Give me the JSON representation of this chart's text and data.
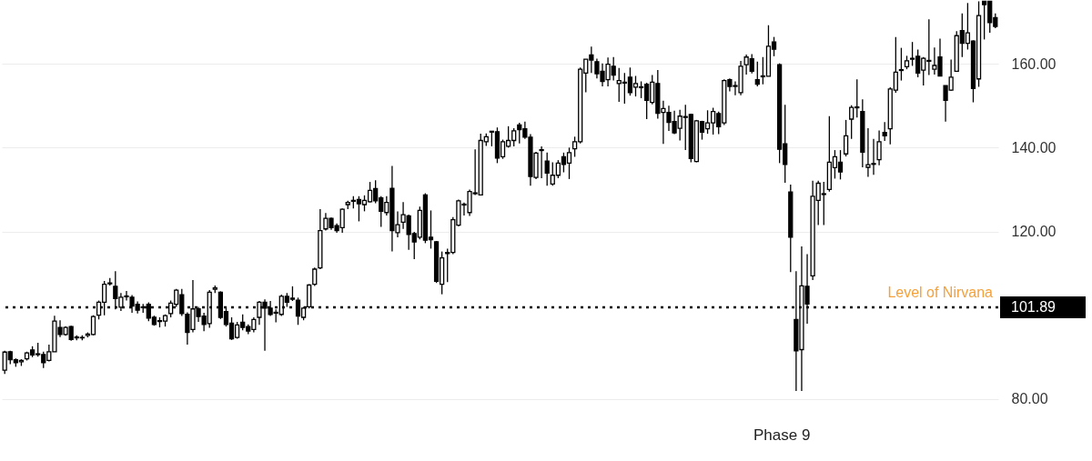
{
  "chart_data": {
    "type": "candlestick",
    "categories": [
      null,
      null,
      null,
      null,
      null,
      null,
      null,
      null,
      null,
      null,
      null,
      null,
      null,
      null,
      null,
      null,
      null,
      null,
      null,
      null,
      null,
      null,
      null,
      null,
      null,
      null,
      null,
      null,
      null,
      null,
      null,
      null,
      null,
      null,
      null,
      null,
      null,
      null,
      null,
      null,
      null,
      null,
      null,
      null,
      null,
      null,
      null,
      null,
      null,
      null,
      null,
      null,
      null,
      null,
      null,
      null,
      null,
      null,
      null,
      null,
      null,
      null,
      null,
      null,
      null,
      null,
      null,
      null,
      null,
      null,
      null,
      null,
      null,
      null,
      null,
      null,
      null,
      null,
      null,
      null,
      null,
      null,
      null,
      null,
      null,
      null,
      null,
      null,
      null,
      null,
      null,
      null,
      null,
      null,
      null,
      null,
      null,
      null,
      null,
      null,
      null,
      null,
      null,
      null,
      null,
      null,
      null,
      null,
      null,
      null,
      null,
      null,
      null,
      null,
      null,
      null,
      null,
      null,
      null,
      null,
      null,
      null,
      null,
      null,
      null,
      null,
      null,
      null,
      null,
      null,
      null,
      null,
      null,
      null,
      null,
      null,
      null,
      null,
      null,
      null,
      null,
      null,
      null,
      null,
      null,
      null,
      null,
      null,
      null,
      null,
      null,
      null,
      null,
      null,
      null,
      null,
      null,
      null,
      null,
      null,
      null,
      null,
      null,
      null,
      null,
      null,
      null,
      null,
      null,
      null,
      null,
      null,
      null,
      null,
      null,
      null,
      null,
      null,
      null,
      null
    ],
    "ohlc": [
      [
        86.9,
        91.5,
        86,
        91.2
      ],
      [
        91.3,
        91.5,
        88.3,
        89.4
      ],
      [
        89.4,
        89.7,
        87.7,
        88.7
      ],
      [
        88.9,
        89.5,
        87.9,
        89.2
      ],
      [
        89.6,
        91.3,
        89.2,
        91.0
      ],
      [
        91.7,
        92.6,
        90.0,
        90.5
      ],
      [
        90.8,
        93.4,
        90.1,
        90.6
      ],
      [
        90.6,
        91.3,
        87.4,
        88.7
      ],
      [
        89.2,
        93.0,
        89.0,
        91.3
      ],
      [
        91.3,
        99.9,
        91.3,
        98.6
      ],
      [
        97.1,
        98.8,
        94.8,
        95.4
      ],
      [
        95.4,
        97.4,
        95.1,
        97.1
      ],
      [
        97.3,
        97.5,
        93.9,
        94.2
      ],
      [
        94.6,
        95.2,
        94.0,
        94.8
      ],
      [
        94.7,
        95.2,
        94.0,
        94.6
      ],
      [
        95.2,
        95.9,
        94.7,
        95.5
      ],
      [
        95.4,
        100.0,
        95.2,
        99.7
      ],
      [
        100.0,
        103.5,
        99.0,
        103.1
      ],
      [
        103.1,
        108.2,
        100.0,
        107.4
      ],
      [
        107.5,
        108.9,
        107.1,
        107.7
      ],
      [
        106.9,
        110.5,
        101.4,
        104.0
      ],
      [
        101.9,
        105.3,
        101.0,
        104.3
      ],
      [
        104.4,
        105.8,
        103.5,
        104.6
      ],
      [
        104.3,
        104.8,
        100.6,
        102.2
      ],
      [
        102.6,
        103.3,
        100.4,
        101.2
      ],
      [
        101.8,
        102.7,
        100.6,
        102.0
      ],
      [
        102.6,
        103.1,
        98.6,
        99.3
      ],
      [
        99.5,
        99.9,
        97.5,
        97.8
      ],
      [
        98.5,
        99.5,
        97.1,
        98.7
      ],
      [
        98.6,
        100.2,
        97.3,
        99.9
      ],
      [
        100.4,
        103.5,
        99.5,
        102.9
      ],
      [
        102.6,
        106.3,
        102.0,
        106.0
      ],
      [
        104.9,
        106.3,
        99.8,
        100.4
      ],
      [
        100.2,
        100.7,
        93.0,
        95.9
      ],
      [
        96.6,
        108.4,
        95.9,
        101.5
      ],
      [
        101.5,
        102.0,
        98.4,
        99.7
      ],
      [
        99.8,
        100.6,
        96.2,
        97.8
      ],
      [
        98.0,
        106.0,
        97.0,
        105.5
      ],
      [
        106.2,
        107.1,
        105.3,
        106.5
      ],
      [
        105.5,
        105.7,
        99.1,
        99.5
      ],
      [
        100.9,
        102.0,
        97.3,
        97.8
      ],
      [
        98.1,
        99.5,
        94.1,
        94.4
      ],
      [
        94.7,
        98.4,
        94.4,
        97.7
      ],
      [
        98.3,
        100.2,
        96.4,
        97.1
      ],
      [
        97.3,
        97.8,
        95.5,
        96.2
      ],
      [
        96.6,
        99.5,
        95.9,
        99.0
      ],
      [
        99.5,
        103.4,
        97.7,
        103.1
      ],
      [
        103.1,
        103.8,
        91.5,
        101.7
      ],
      [
        101.7,
        103.4,
        99.8,
        100.2
      ],
      [
        100.5,
        101.4,
        98.3,
        100.7
      ],
      [
        100.2,
        104.9,
        99.8,
        104.5
      ],
      [
        104.5,
        105.3,
        102.0,
        103.1
      ],
      [
        103.8,
        106.9,
        103.4,
        104.1
      ],
      [
        103.6,
        104.2,
        97.7,
        99.8
      ],
      [
        99.5,
        102.0,
        98.8,
        101.7
      ],
      [
        102.0,
        107.4,
        101.6,
        107.2
      ],
      [
        107.4,
        111.4,
        107.0,
        111.0
      ],
      [
        111.3,
        125.3,
        111.0,
        120.2
      ],
      [
        120.6,
        124.4,
        120.2,
        123.1
      ],
      [
        123.1,
        123.3,
        120.4,
        120.9
      ],
      [
        121.4,
        121.9,
        119.7,
        120.2
      ],
      [
        120.9,
        125.5,
        119.7,
        125.3
      ],
      [
        126.4,
        127.3,
        125.3,
        126.9
      ],
      [
        127.2,
        128.4,
        125.5,
        127.4
      ],
      [
        127.6,
        128.4,
        122.4,
        126.6
      ],
      [
        126.4,
        128.6,
        124.8,
        127.4
      ],
      [
        127.1,
        131.8,
        126.9,
        129.8
      ],
      [
        130.2,
        132.2,
        126.7,
        127.3
      ],
      [
        128.0,
        128.4,
        121.1,
        124.8
      ],
      [
        124.5,
        128.4,
        123.8,
        126.9
      ],
      [
        130.3,
        135.6,
        115.2,
        120.2
      ],
      [
        119.7,
        124.8,
        118.6,
        121.6
      ],
      [
        122.2,
        127.0,
        120.6,
        124.0
      ],
      [
        123.7,
        124.0,
        115.6,
        119.3
      ],
      [
        119.5,
        119.9,
        113.4,
        117.5
      ],
      [
        118.6,
        125.9,
        118.1,
        125.0
      ],
      [
        128.7,
        129.1,
        117.2,
        117.9
      ],
      [
        118.6,
        125.0,
        115.9,
        118.0
      ],
      [
        117.5,
        117.7,
        107.7,
        108.1
      ],
      [
        107.4,
        115.2,
        105.0,
        113.7
      ],
      [
        114.7,
        115.9,
        107.9,
        115.0
      ],
      [
        115.0,
        123.4,
        114.6,
        122.8
      ],
      [
        121.5,
        127.6,
        121.2,
        127.3
      ],
      [
        126.3,
        126.9,
        123.8,
        126.5
      ],
      [
        124.5,
        130.0,
        123.7,
        129.5
      ],
      [
        129.0,
        139.6,
        128.7,
        129.2
      ],
      [
        128.7,
        143.3,
        128.7,
        141.7
      ],
      [
        141.4,
        143.4,
        140.4,
        142.6
      ],
      [
        143.7,
        143.9,
        140.3,
        143.9
      ],
      [
        143.8,
        144.8,
        136.3,
        137.5
      ],
      [
        137.8,
        141.9,
        137.3,
        141.4
      ],
      [
        140.3,
        145.1,
        140.0,
        141.7
      ],
      [
        141.7,
        144.6,
        140.3,
        144.0
      ],
      [
        145.4,
        145.9,
        141.0,
        144.3
      ],
      [
        144.5,
        146.2,
        142.1,
        142.5
      ],
      [
        142.5,
        143.2,
        130.9,
        133.1
      ],
      [
        132.9,
        139.0,
        132.5,
        138.7
      ],
      [
        139.3,
        140.3,
        132.7,
        139.5
      ],
      [
        136.8,
        138.8,
        130.9,
        133.9
      ],
      [
        131.3,
        136.5,
        130.9,
        133.4
      ],
      [
        133.4,
        137.0,
        132.7,
        136.3
      ],
      [
        137.8,
        138.8,
        134.1,
        136.0
      ],
      [
        136.3,
        140.0,
        132.5,
        138.8
      ],
      [
        139.7,
        142.6,
        137.8,
        141.4
      ],
      [
        141.4,
        159.1,
        141.0,
        158.7
      ],
      [
        157.8,
        161.1,
        153.2,
        161.1
      ],
      [
        162.1,
        164.1,
        157.8,
        160.9
      ],
      [
        160.5,
        161.2,
        156.5,
        157.6
      ],
      [
        158.2,
        160.1,
        154.6,
        155.8
      ],
      [
        156.2,
        161.5,
        154.6,
        159.9
      ],
      [
        159.4,
        161.6,
        156.0,
        157.3
      ],
      [
        155.3,
        159.0,
        150.9,
        156.0
      ],
      [
        155.4,
        157.8,
        150.5,
        155.6
      ],
      [
        156.8,
        159.1,
        152.4,
        153.1
      ],
      [
        154.4,
        157.1,
        152.2,
        155.3
      ],
      [
        154.3,
        155.8,
        151.8,
        154.5
      ],
      [
        155.1,
        155.5,
        146.8,
        151.3
      ],
      [
        150.8,
        157.3,
        150.3,
        155.6
      ],
      [
        155.3,
        158.5,
        146.9,
        148.2
      ],
      [
        148.4,
        151.2,
        140.9,
        149.3
      ],
      [
        148.4,
        150.0,
        144.0,
        146.0
      ],
      [
        146.2,
        148.8,
        143.2,
        143.5
      ],
      [
        144.6,
        149.0,
        141.7,
        147.5
      ],
      [
        147.2,
        150.2,
        139.4,
        147.4
      ],
      [
        147.9,
        148.1,
        136.5,
        137.4
      ],
      [
        136.7,
        146.6,
        136.5,
        146.4
      ],
      [
        146.2,
        146.4,
        141.9,
        143.7
      ],
      [
        144.5,
        148.9,
        143.3,
        145.9
      ],
      [
        145.9,
        149.5,
        143.1,
        148.6
      ],
      [
        148.1,
        148.6,
        143.2,
        145.0
      ],
      [
        145.9,
        156.3,
        145.4,
        156.0
      ],
      [
        156.2,
        156.5,
        153.4,
        154.6
      ],
      [
        154.6,
        155.8,
        152.5,
        154.8
      ],
      [
        153.1,
        160.7,
        152.5,
        159.4
      ],
      [
        159.8,
        162.2,
        157.4,
        161.6
      ],
      [
        161.2,
        162.3,
        157.7,
        158.2
      ],
      [
        156.2,
        160.5,
        154.6,
        155.1
      ],
      [
        156.9,
        161.6,
        155.1,
        157.1
      ],
      [
        157.0,
        169.2,
        157.0,
        164.2
      ],
      [
        165.2,
        166.4,
        161.8,
        163.5
      ],
      [
        159.8,
        160.1,
        136.3,
        139.6
      ],
      [
        140.9,
        150.2,
        131.6,
        136.0
      ],
      [
        129.4,
        131.2,
        110.3,
        118.6
      ],
      [
        99.0,
        110.5,
        81.9,
        91.5
      ],
      [
        91.8,
        116.4,
        81.9,
        107.0
      ],
      [
        106.9,
        114.6,
        98.0,
        102.7
      ],
      [
        109.4,
        132.1,
        108.4,
        128.4
      ],
      [
        127.4,
        132.1,
        121.5,
        131.5
      ],
      [
        128.8,
        131.8,
        121.5,
        129.0
      ],
      [
        130.0,
        147.5,
        129.5,
        136.5
      ],
      [
        135.2,
        139.4,
        132.6,
        137.8
      ],
      [
        136.5,
        139.4,
        132.4,
        134.2
      ],
      [
        138.5,
        146.6,
        137.9,
        142.8
      ],
      [
        146.8,
        150.1,
        142.1,
        149.6
      ],
      [
        149.5,
        156.3,
        147.2,
        149.7
      ],
      [
        148.6,
        151.5,
        135.3,
        138.9
      ],
      [
        135.3,
        144.6,
        133.0,
        135.9
      ],
      [
        136.0,
        142.1,
        133.5,
        136.2
      ],
      [
        137.1,
        144.1,
        135.8,
        141.4
      ],
      [
        143.6,
        146.1,
        141.6,
        142.8
      ],
      [
        144.5,
        154.4,
        140.8,
        154.0
      ],
      [
        153.7,
        166.4,
        153.1,
        158.0
      ],
      [
        158.4,
        163.8,
        156.0,
        158.6
      ],
      [
        159.3,
        161.9,
        158.7,
        160.7
      ],
      [
        161.1,
        165.2,
        159.5,
        161.3
      ],
      [
        161.8,
        163.4,
        156.8,
        157.8
      ],
      [
        158.5,
        161.6,
        154.8,
        161.3
      ],
      [
        160.6,
        170.6,
        157.3,
        160.8
      ],
      [
        158.7,
        163.9,
        157.4,
        159.6
      ],
      [
        161.6,
        166.0,
        157.0,
        157.1
      ],
      [
        154.8,
        154.8,
        146.2,
        151.3
      ],
      [
        153.7,
        161.0,
        153.5,
        156.8
      ],
      [
        158.2,
        167.8,
        158.2,
        166.7
      ],
      [
        167.9,
        172.0,
        161.6,
        164.9
      ],
      [
        164.9,
        174.5,
        163.4,
        167.4
      ],
      [
        165.4,
        165.6,
        150.8,
        154.1
      ],
      [
        156.4,
        174.9,
        154.5,
        171.5
      ],
      [
        174.9,
        174.9,
        165.8,
        174.1
      ],
      [
        174.9,
        174.9,
        167.4,
        169.8
      ],
      [
        171.0,
        172.0,
        168.5,
        168.9
      ]
    ],
    "ylim": [
      65,
      175
    ],
    "yticks": [
      {
        "value": 80,
        "label": "80.00"
      },
      {
        "value": 101.89,
        "label": "101.89"
      },
      {
        "value": 120,
        "label": "120.00"
      },
      {
        "value": 140,
        "label": "140.00"
      },
      {
        "value": 160,
        "label": "160.00"
      }
    ],
    "grid": "y",
    "tick_labels": "y",
    "ref_lines": [
      {
        "axis": "y",
        "value": 101.89,
        "label": "Level of Nirvana",
        "color": "#000000",
        "line_style": "dotted"
      }
    ],
    "annotations": [
      "Phase 9"
    ]
  }
}
